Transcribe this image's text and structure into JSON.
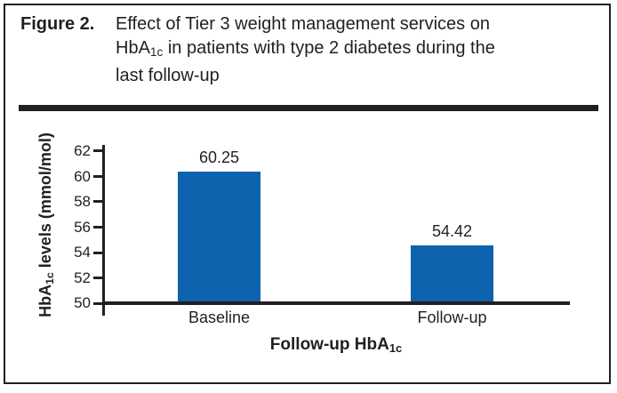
{
  "figure": {
    "label": "Figure 2.",
    "title_line1": "Effect of Tier 3 weight management services on",
    "title_line2_pre": "HbA",
    "title_line2_sub": "1c",
    "title_line2_post": " in patients with type 2 diabetes during the",
    "title_line3": "last follow-up"
  },
  "axis": {
    "ylabel_pre": "HbA",
    "ylabel_sub": "1c",
    "ylabel_post": " levels (mmol/mol)",
    "xlabel_pre": "Follow-up HbA",
    "xlabel_sub": "1c"
  },
  "chart_data": {
    "type": "bar",
    "title": "Figure 2. Effect of Tier 3 weight management services on HbA1c in patients with type 2 diabetes during the last follow-up",
    "categories": [
      "Baseline",
      "Follow-up"
    ],
    "values": [
      60.25,
      54.42
    ],
    "xlabel": "Follow-up HbA1c",
    "ylabel": "HbA1c levels (mmol/mol)",
    "ylim": [
      50,
      62
    ],
    "yticks": [
      50,
      52,
      54,
      56,
      58,
      60,
      62
    ],
    "grid": false,
    "legend": false,
    "bar_color": "#0d63ae"
  },
  "colors": {
    "bar": "#0d63ae",
    "text": "#231f20",
    "line": "#231f20"
  }
}
